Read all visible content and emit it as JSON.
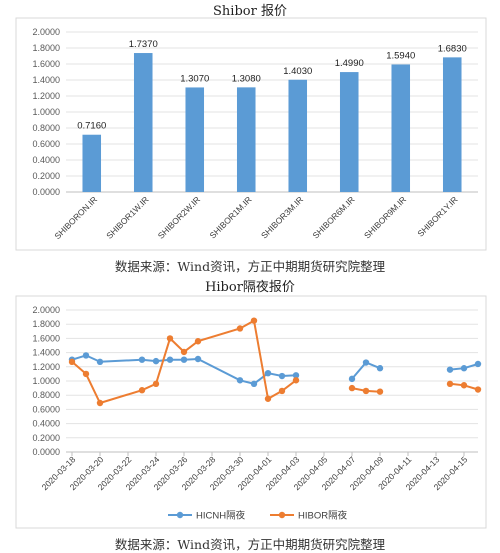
{
  "chart_data": [
    {
      "type": "bar",
      "title": "Shibor 报价",
      "categories": [
        "SHIBORON.IR",
        "SHIBOR1W.IR",
        "SHIBOR2W.IR",
        "SHIBOR1M.IR",
        "SHIBOR3M.IR",
        "SHIBOR6M.IR",
        "SHIBOR9M.IR",
        "SHIBOR1Y.IR"
      ],
      "values": [
        0.716,
        1.737,
        1.307,
        1.308,
        1.403,
        1.499,
        1.594,
        1.683
      ],
      "data_labels": [
        "0.7160",
        "1.7370",
        "1.3070",
        "1.3080",
        "1.4030",
        "1.4990",
        "1.5940",
        "1.6830"
      ],
      "ylim": [
        0,
        2
      ],
      "yticks": [
        "0.0000",
        "0.2000",
        "0.4000",
        "0.6000",
        "0.8000",
        "1.0000",
        "1.2000",
        "1.4000",
        "1.6000",
        "1.8000",
        "2.0000"
      ],
      "grid": true,
      "bar_color": "#5B9BD5",
      "source": "数据来源：Wind资讯，方正中期期货研究院整理"
    },
    {
      "type": "line",
      "title": "Hibor隔夜报价",
      "x_ticks": [
        "2020-03-18",
        "2020-03-20",
        "2020-03-22",
        "2020-03-24",
        "2020-03-26",
        "2020-03-28",
        "2020-03-30",
        "2020-04-01",
        "2020-04-03",
        "2020-04-05",
        "2020-04-07",
        "2020-04-09",
        "2020-04-11",
        "2020-04-13",
        "2020-04-15"
      ],
      "ylim": [
        0,
        2
      ],
      "yticks": [
        "0.0000",
        "0.2000",
        "0.4000",
        "0.6000",
        "0.8000",
        "1.0000",
        "1.2000",
        "1.4000",
        "1.6000",
        "1.8000",
        "2.0000"
      ],
      "grid": true,
      "legend_position": "bottom",
      "series": [
        {
          "name": "HICNH隔夜",
          "color": "#5B9BD5",
          "points": [
            [
              "2020-03-18",
              1.3
            ],
            [
              "2020-03-19",
              1.36
            ],
            [
              "2020-03-20",
              1.27
            ],
            [
              "2020-03-23",
              1.3
            ],
            [
              "2020-03-24",
              1.28
            ],
            [
              "2020-03-25",
              1.3
            ],
            [
              "2020-03-26",
              1.3
            ],
            [
              "2020-03-27",
              1.31
            ],
            [
              "2020-03-30",
              1.01
            ],
            [
              "2020-03-31",
              0.96
            ],
            [
              "2020-04-01",
              1.11
            ],
            [
              "2020-04-02",
              1.07
            ],
            [
              "2020-04-03",
              1.08
            ],
            [
              "2020-04-07",
              1.03
            ],
            [
              "2020-04-08",
              1.26
            ],
            [
              "2020-04-09",
              1.18
            ],
            [
              "2020-04-14",
              1.16
            ],
            [
              "2020-04-15",
              1.18
            ],
            [
              "2020-04-16",
              1.24
            ]
          ]
        },
        {
          "name": "HIBOR隔夜",
          "color": "#ED7D31",
          "points": [
            [
              "2020-03-18",
              1.27
            ],
            [
              "2020-03-19",
              1.1
            ],
            [
              "2020-03-20",
              0.69
            ],
            [
              "2020-03-23",
              0.87
            ],
            [
              "2020-03-24",
              0.96
            ],
            [
              "2020-03-25",
              1.6
            ],
            [
              "2020-03-26",
              1.41
            ],
            [
              "2020-03-27",
              1.56
            ],
            [
              "2020-03-30",
              1.74
            ],
            [
              "2020-03-31",
              1.85
            ],
            [
              "2020-04-01",
              0.75
            ],
            [
              "2020-04-02",
              0.86
            ],
            [
              "2020-04-03",
              1.01
            ],
            [
              "2020-04-07",
              0.9
            ],
            [
              "2020-04-08",
              0.86
            ],
            [
              "2020-04-09",
              0.85
            ],
            [
              "2020-04-14",
              0.96
            ],
            [
              "2020-04-15",
              0.94
            ],
            [
              "2020-04-16",
              0.88
            ]
          ]
        }
      ],
      "source": "数据来源：Wind资讯，方正中期期货研究院整理"
    }
  ]
}
